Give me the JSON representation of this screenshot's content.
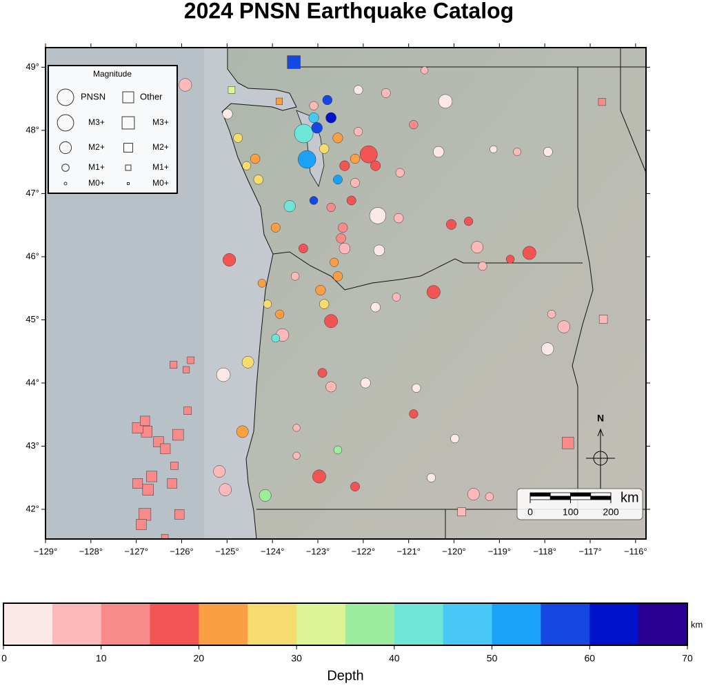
{
  "title": "2024 PNSN Earthquake Catalog",
  "map": {
    "xlim": [
      -129,
      -115.77
    ],
    "ylim": [
      41.53,
      49.31
    ],
    "xticks": [
      {
        "value": -129,
        "label": "−129°"
      },
      {
        "value": -128,
        "label": "−128°"
      },
      {
        "value": -127,
        "label": "−127°"
      },
      {
        "value": -126,
        "label": "−126°"
      },
      {
        "value": -125,
        "label": "−125°"
      },
      {
        "value": -124,
        "label": "−124°"
      },
      {
        "value": -123,
        "label": "−123°"
      },
      {
        "value": -122,
        "label": "−122°"
      },
      {
        "value": -121,
        "label": "−121°"
      },
      {
        "value": -120,
        "label": "−120°"
      },
      {
        "value": -119,
        "label": "−119°"
      },
      {
        "value": -118,
        "label": "−118°"
      },
      {
        "value": -117,
        "label": "−117°"
      },
      {
        "value": -116,
        "label": "−116°"
      }
    ],
    "yticks": [
      {
        "value": 42,
        "label": "42°"
      },
      {
        "value": 43,
        "label": "43°"
      },
      {
        "value": 44,
        "label": "44°"
      },
      {
        "value": 45,
        "label": "45°"
      },
      {
        "value": 46,
        "label": "46°"
      },
      {
        "value": 47,
        "label": "47°"
      },
      {
        "value": 48,
        "label": "48°"
      },
      {
        "value": 49,
        "label": "49°"
      }
    ]
  },
  "pnsn_events": [
    {
      "lon": -123.31,
      "lat": 47.95,
      "depth": 42,
      "mag": 3.5
    },
    {
      "lon": -123.24,
      "lat": 47.54,
      "depth": 52,
      "mag": 3.3
    },
    {
      "lon": -121.88,
      "lat": 47.62,
      "depth": 17,
      "mag": 3.2
    },
    {
      "lon": -121.68,
      "lat": 46.65,
      "depth": 3,
      "mag": 3.0
    },
    {
      "lon": -124.95,
      "lat": 45.95,
      "depth": 18,
      "mag": 2.2
    },
    {
      "lon": -122.97,
      "lat": 42.52,
      "depth": 17,
      "mag": 2.3
    },
    {
      "lon": -125.08,
      "lat": 44.13,
      "depth": 2,
      "mag": 2.4
    },
    {
      "lon": -120.45,
      "lat": 45.44,
      "depth": 16,
      "mag": 2.3
    },
    {
      "lon": -118.34,
      "lat": 46.06,
      "depth": 15,
      "mag": 2.3
    },
    {
      "lon": -120.19,
      "lat": 48.46,
      "depth": 1,
      "mag": 2.4
    },
    {
      "lon": -125.92,
      "lat": 48.72,
      "depth": 7,
      "mag": 2.2
    },
    {
      "lon": -119.49,
      "lat": 46.15,
      "depth": 8,
      "mag": 2.0
    },
    {
      "lon": -117.58,
      "lat": 44.89,
      "depth": 7,
      "mag": 2.1
    },
    {
      "lon": -122.71,
      "lat": 44.98,
      "depth": 18,
      "mag": 2.3
    },
    {
      "lon": -123.78,
      "lat": 44.76,
      "depth": 8,
      "mag": 2.2
    },
    {
      "lon": -124.16,
      "lat": 42.22,
      "depth": 37,
      "mag": 2.0
    },
    {
      "lon": -124.66,
      "lat": 43.23,
      "depth": 22,
      "mag": 2.0
    },
    {
      "lon": -124.54,
      "lat": 44.33,
      "depth": 27,
      "mag": 2.0
    },
    {
      "lon": -123.62,
      "lat": 46.8,
      "depth": 42,
      "mag": 1.9
    },
    {
      "lon": -125.04,
      "lat": 42.31,
      "depth": 6,
      "mag": 2.1
    },
    {
      "lon": -125.17,
      "lat": 42.6,
      "depth": 9,
      "mag": 2.0
    },
    {
      "lon": -122.56,
      "lat": 47.88,
      "depth": 22,
      "mag": 1.6
    },
    {
      "lon": -122.86,
      "lat": 47.71,
      "depth": 27,
      "mag": 1.5
    },
    {
      "lon": -122.41,
      "lat": 47.44,
      "depth": 18,
      "mag": 1.6
    },
    {
      "lon": -122.18,
      "lat": 47.55,
      "depth": 23,
      "mag": 1.5
    },
    {
      "lon": -123.02,
      "lat": 48.04,
      "depth": 55,
      "mag": 1.8
    },
    {
      "lon": -122.71,
      "lat": 48.2,
      "depth": 60,
      "mag": 1.7
    },
    {
      "lon": -123.09,
      "lat": 48.2,
      "depth": 45,
      "mag": 1.6
    },
    {
      "lon": -122.79,
      "lat": 48.48,
      "depth": 58,
      "mag": 1.5
    },
    {
      "lon": -122.56,
      "lat": 47.22,
      "depth": 50,
      "mag": 1.4
    },
    {
      "lon": -122.11,
      "lat": 47.98,
      "depth": 8,
      "mag": 1.3
    },
    {
      "lon": -121.73,
      "lat": 47.44,
      "depth": 16,
      "mag": 1.6
    },
    {
      "lon": -122.45,
      "lat": 46.46,
      "depth": 12,
      "mag": 1.5
    },
    {
      "lon": -122.41,
      "lat": 46.13,
      "depth": 6,
      "mag": 1.8
    },
    {
      "lon": -122.56,
      "lat": 45.69,
      "depth": 22,
      "mag": 1.5
    },
    {
      "lon": -122.94,
      "lat": 45.47,
      "depth": 24,
      "mag": 1.6
    },
    {
      "lon": -122.86,
      "lat": 45.25,
      "depth": 26,
      "mag": 1.5
    },
    {
      "lon": -123.32,
      "lat": 46.13,
      "depth": 18,
      "mag": 1.4
    },
    {
      "lon": -123.09,
      "lat": 48.39,
      "depth": 7,
      "mag": 1.3
    },
    {
      "lon": -122.11,
      "lat": 48.64,
      "depth": 1,
      "mag": 1.4
    },
    {
      "lon": -120.65,
      "lat": 48.95,
      "depth": 8,
      "mag": 1.0
    },
    {
      "lon": -118.61,
      "lat": 47.66,
      "depth": 7,
      "mag": 1.1
    },
    {
      "lon": -117.93,
      "lat": 47.66,
      "depth": 1,
      "mag": 1.4
    },
    {
      "lon": -119.13,
      "lat": 47.7,
      "depth": 2,
      "mag": 1.0
    },
    {
      "lon": -121.19,
      "lat": 47.33,
      "depth": 6,
      "mag": 1.3
    },
    {
      "lon": -120.34,
      "lat": 47.66,
      "depth": 1,
      "mag": 1.8
    },
    {
      "lon": -119.68,
      "lat": 46.56,
      "depth": 18,
      "mag": 1.3
    },
    {
      "lon": -120.06,
      "lat": 46.51,
      "depth": 17,
      "mag": 1.6
    },
    {
      "lon": -121.22,
      "lat": 46.61,
      "depth": 7,
      "mag": 1.5
    },
    {
      "lon": -121.65,
      "lat": 46.1,
      "depth": 4,
      "mag": 1.8
    },
    {
      "lon": -119.37,
      "lat": 45.85,
      "depth": 7,
      "mag": 1.3
    },
    {
      "lon": -118.76,
      "lat": 45.96,
      "depth": 17,
      "mag": 1.2
    },
    {
      "lon": -117.85,
      "lat": 45.09,
      "depth": 8,
      "mag": 1.2
    },
    {
      "lon": -117.94,
      "lat": 44.54,
      "depth": 4,
      "mag": 2.1
    },
    {
      "lon": -121.95,
      "lat": 44.0,
      "depth": 3,
      "mag": 1.6
    },
    {
      "lon": -122.71,
      "lat": 43.94,
      "depth": 6,
      "mag": 1.7
    },
    {
      "lon": -120.83,
      "lat": 43.92,
      "depth": 1,
      "mag": 1.3
    },
    {
      "lon": -119.98,
      "lat": 43.12,
      "depth": 1,
      "mag": 1.3
    },
    {
      "lon": -120.5,
      "lat": 42.5,
      "depth": 1,
      "mag": 1.3
    },
    {
      "lon": -119.22,
      "lat": 42.2,
      "depth": 7,
      "mag": 1.2
    },
    {
      "lon": -119.57,
      "lat": 42.24,
      "depth": 5,
      "mag": 2.0
    },
    {
      "lon": -120.89,
      "lat": 43.51,
      "depth": 17,
      "mag": 1.3
    },
    {
      "lon": -122.18,
      "lat": 42.36,
      "depth": 17,
      "mag": 1.4
    },
    {
      "lon": -123.47,
      "lat": 42.85,
      "depth": 8,
      "mag": 1.0
    },
    {
      "lon": -122.56,
      "lat": 42.94,
      "depth": 37,
      "mag": 1.2
    },
    {
      "lon": -122.9,
      "lat": 44.16,
      "depth": 17,
      "mag": 1.4
    },
    {
      "lon": -123.84,
      "lat": 45.09,
      "depth": 22,
      "mag": 1.3
    },
    {
      "lon": -123.93,
      "lat": 44.71,
      "depth": 42,
      "mag": 1.2
    },
    {
      "lon": -123.5,
      "lat": 45.69,
      "depth": 8,
      "mag": 1.2
    },
    {
      "lon": -124.23,
      "lat": 45.58,
      "depth": 22,
      "mag": 1.2
    },
    {
      "lon": -124.11,
      "lat": 45.25,
      "depth": 28,
      "mag": 1.2
    },
    {
      "lon": -123.93,
      "lat": 46.46,
      "depth": 22,
      "mag": 1.4
    },
    {
      "lon": -124.31,
      "lat": 47.22,
      "depth": 27,
      "mag": 1.5
    },
    {
      "lon": -124.57,
      "lat": 47.44,
      "depth": 27,
      "mag": 1.3
    },
    {
      "lon": -124.38,
      "lat": 47.55,
      "depth": 22,
      "mag": 1.5
    },
    {
      "lon": -124.76,
      "lat": 47.88,
      "depth": 27,
      "mag": 1.4
    },
    {
      "lon": -124.99,
      "lat": 48.26,
      "depth": 2,
      "mag": 1.6
    },
    {
      "lon": -123.09,
      "lat": 46.89,
      "depth": 55,
      "mag": 1.2
    },
    {
      "lon": -122.18,
      "lat": 47.17,
      "depth": 7,
      "mag": 1.4
    },
    {
      "lon": -122.26,
      "lat": 46.89,
      "depth": 17,
      "mag": 1.4
    },
    {
      "lon": -122.71,
      "lat": 46.78,
      "depth": 12,
      "mag": 1.3
    },
    {
      "lon": -122.49,
      "lat": 46.29,
      "depth": 14,
      "mag": 1.5
    },
    {
      "lon": -122.64,
      "lat": 45.91,
      "depth": 24,
      "mag": 1.3
    },
    {
      "lon": -121.5,
      "lat": 48.59,
      "depth": 8,
      "mag": 1.4
    },
    {
      "lon": -120.89,
      "lat": 48.09,
      "depth": 12,
      "mag": 1.3
    },
    {
      "lon": -123.47,
      "lat": 43.29,
      "depth": 7,
      "mag": 1.0
    },
    {
      "lon": -121.73,
      "lat": 45.2,
      "depth": 4,
      "mag": 1.5
    },
    {
      "lon": -121.27,
      "lat": 45.36,
      "depth": 8,
      "mag": 1.2
    }
  ],
  "other_events": [
    {
      "lon": -123.53,
      "lat": 49.08,
      "depth": 58,
      "mag": 3.2
    },
    {
      "lon": -124.9,
      "lat": 48.64,
      "depth": 32,
      "mag": 1.4
    },
    {
      "lon": -123.85,
      "lat": 48.46,
      "depth": 22,
      "mag": 1.3
    },
    {
      "lon": -116.74,
      "lat": 48.45,
      "depth": 12,
      "mag": 1.5
    },
    {
      "lon": -116.71,
      "lat": 45.01,
      "depth": 9,
      "mag": 1.8
    },
    {
      "lon": -117.49,
      "lat": 43.05,
      "depth": 10,
      "mag": 2.8
    },
    {
      "lon": -119.83,
      "lat": 41.96,
      "depth": 9,
      "mag": 1.8
    },
    {
      "lon": -126.77,
      "lat": 43.23,
      "depth": 12,
      "mag": 2.6
    },
    {
      "lon": -126.97,
      "lat": 43.29,
      "depth": 11,
      "mag": 2.5
    },
    {
      "lon": -126.51,
      "lat": 43.07,
      "depth": 12,
      "mag": 2.4
    },
    {
      "lon": -126.08,
      "lat": 43.18,
      "depth": 13,
      "mag": 2.6
    },
    {
      "lon": -126.36,
      "lat": 42.96,
      "depth": 12,
      "mag": 2.3
    },
    {
      "lon": -126.81,
      "lat": 41.92,
      "depth": 12,
      "mag": 2.9
    },
    {
      "lon": -126.74,
      "lat": 42.31,
      "depth": 11,
      "mag": 2.6
    },
    {
      "lon": -126.89,
      "lat": 41.76,
      "depth": 12,
      "mag": 2.4
    },
    {
      "lon": -126.21,
      "lat": 42.41,
      "depth": 11,
      "mag": 2.2
    },
    {
      "lon": -126.05,
      "lat": 41.92,
      "depth": 12,
      "mag": 2.2
    },
    {
      "lon": -125.87,
      "lat": 43.56,
      "depth": 11,
      "mag": 1.6
    },
    {
      "lon": -126.18,
      "lat": 44.29,
      "depth": 12,
      "mag": 1.5
    },
    {
      "lon": -125.8,
      "lat": 44.36,
      "depth": 11,
      "mag": 1.4
    },
    {
      "lon": -125.9,
      "lat": 44.21,
      "depth": 12,
      "mag": 1.3
    },
    {
      "lon": -126.37,
      "lat": 41.55,
      "depth": 12,
      "mag": 1.4
    },
    {
      "lon": -126.16,
      "lat": 42.69,
      "depth": 13,
      "mag": 1.6
    },
    {
      "lon": -126.81,
      "lat": 43.4,
      "depth": 11,
      "mag": 2.2
    },
    {
      "lon": -126.66,
      "lat": 42.52,
      "depth": 12,
      "mag": 2.5
    },
    {
      "lon": -126.97,
      "lat": 42.41,
      "depth": 12,
      "mag": 2.3
    }
  ],
  "legend": {
    "title": "Magnitude",
    "networks": [
      "PNSN",
      "Other"
    ],
    "sizes": [
      {
        "value": 3,
        "label": "M3+"
      },
      {
        "value": 2,
        "label": "M2+"
      },
      {
        "value": 1,
        "label": "M1+"
      },
      {
        "value": 0,
        "label": "M0+"
      }
    ]
  },
  "scale_bar": {
    "ticks": [
      0,
      100,
      200
    ],
    "unit": "km"
  },
  "north_arrow": "N",
  "colorbar": {
    "label": "Depth",
    "unit": "km",
    "range": [
      0,
      70
    ],
    "ticks": [
      0,
      10,
      20,
      30,
      40,
      50,
      60,
      70
    ],
    "colors": [
      "#fde8e8",
      "#fcb9b9",
      "#f88a8a",
      "#f25454",
      "#fb9f45",
      "#f6dc6e",
      "#dcf494",
      "#9ced9e",
      "#6de6d8",
      "#48c8f7",
      "#1aa2f9",
      "#1547e2",
      "#0013cb",
      "#2a0092"
    ]
  }
}
